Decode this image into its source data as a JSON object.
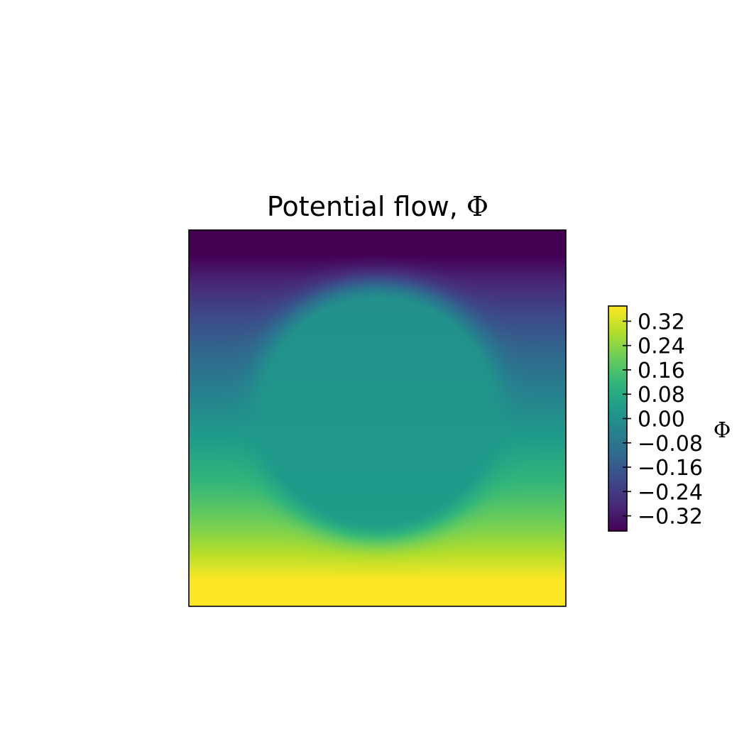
{
  "chart_data": {
    "type": "heatmap",
    "title": "Potential flow, ",
    "title_symbol": "Φ",
    "colormap": "viridis",
    "colormap_stops": [
      "#440154",
      "#482878",
      "#3e4989",
      "#31688e",
      "#26828e",
      "#1f9e89",
      "#35b779",
      "#6ece58",
      "#b5de2b",
      "#fde725"
    ],
    "x_axis": {
      "ticks": [],
      "labels_visible": false
    },
    "y_axis": {
      "ticks": [],
      "labels_visible": false
    },
    "colorbar": {
      "label": "Φ",
      "range": [
        -0.37,
        0.37
      ],
      "ticks": [
        0.32,
        0.24,
        0.16,
        0.08,
        0.0,
        -0.08,
        -0.16,
        -0.24,
        -0.32
      ],
      "tick_labels": [
        "0.32",
        "0.24",
        "0.16",
        "0.08",
        "0.00",
        "−0.08",
        "−0.16",
        "−0.24",
        "−0.32"
      ]
    },
    "field": {
      "description_values": "potential increases from top (min) to bottom (max), with a circular obstacle region near the centre where values stay near zero",
      "value_top": -0.37,
      "value_bottom": 0.37,
      "obstacle_center": [
        0.5,
        0.48
      ],
      "obstacle_radius": 0.29,
      "obstacle_value": 0.02
    }
  }
}
